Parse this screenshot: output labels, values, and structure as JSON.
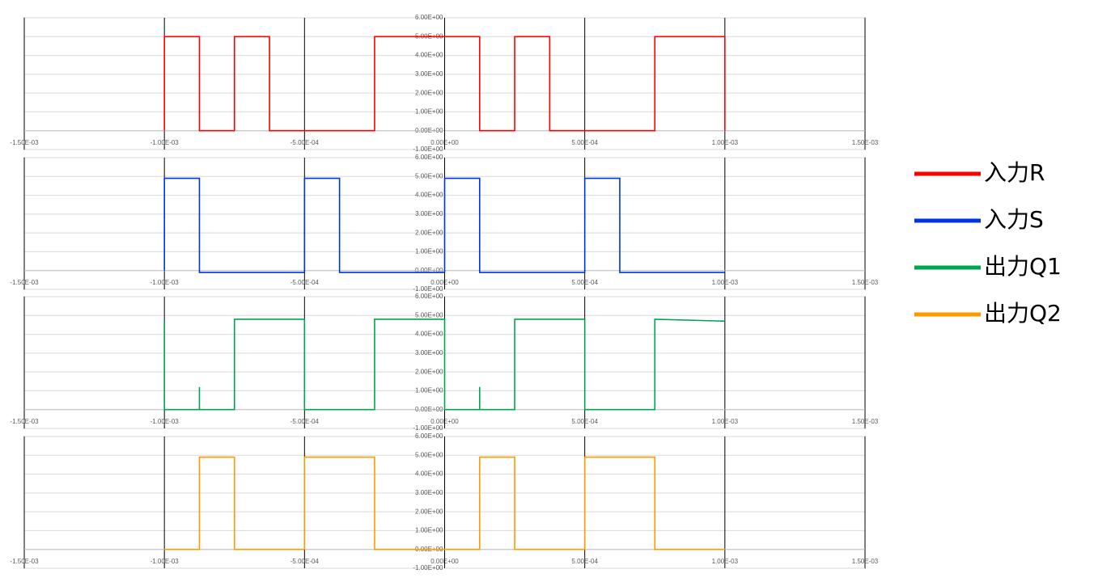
{
  "chart_data": [
    {
      "type": "line",
      "grid": true,
      "x": [
        -0.001,
        -0.001,
        -0.000875,
        -0.000875,
        -0.00075,
        -0.00075,
        -0.000625,
        -0.000625,
        -0.00025,
        -0.00025,
        0.000125,
        0.000125,
        0.00025,
        0.00025,
        0.000375,
        0.000375,
        0.00075,
        0.00075,
        0.001,
        0.001
      ],
      "series": [
        {
          "name": "入力R",
          "color": "#ff0000",
          "values": [
            0,
            5,
            5,
            0,
            0,
            5,
            5,
            0,
            0,
            5,
            5,
            0,
            0,
            5,
            5,
            0,
            0,
            5,
            5,
            0
          ]
        }
      ],
      "xlim": [
        -0.0015,
        0.0015
      ],
      "ylim": [
        -1,
        6
      ],
      "xticks": [
        {
          "value": -0.0015,
          "label": "-1.50E-03"
        },
        {
          "value": -0.001,
          "label": "-1.00E-03"
        },
        {
          "value": -0.0005,
          "label": "-5.00E-04"
        },
        {
          "value": 0,
          "label": "0.00E+00"
        },
        {
          "value": 0.0005,
          "label": "5.00E-04"
        },
        {
          "value": 0.001,
          "label": "1.00E-03"
        },
        {
          "value": 0.0015,
          "label": "1.50E-03"
        }
      ],
      "yticks": [
        {
          "value": -1,
          "label": "-1.00E+00"
        },
        {
          "value": 0,
          "label": "0.00E+00"
        },
        {
          "value": 1,
          "label": "1.00E+00"
        },
        {
          "value": 2,
          "label": "2.00E+00"
        },
        {
          "value": 3,
          "label": "3.00E+00"
        },
        {
          "value": 4,
          "label": "4.00E+00"
        },
        {
          "value": 5,
          "label": "5.00E+00"
        },
        {
          "value": 6,
          "label": "6.00E+00"
        }
      ]
    },
    {
      "type": "line",
      "grid": true,
      "x": [
        -0.001,
        -0.001,
        -0.000875,
        -0.000875,
        -0.0005,
        -0.0005,
        -0.000375,
        -0.000375,
        0,
        0,
        0.000125,
        0.000125,
        0.0005,
        0.0005,
        0.000625,
        0.000625,
        0.001
      ],
      "series": [
        {
          "name": "入力S",
          "color": "#0033e6",
          "values": [
            0,
            4.9,
            4.9,
            -0.1,
            -0.1,
            4.9,
            4.9,
            -0.1,
            -0.1,
            4.9,
            4.9,
            -0.1,
            -0.1,
            4.9,
            4.9,
            -0.1,
            -0.1
          ]
        }
      ],
      "xlim": [
        -0.0015,
        0.0015
      ],
      "ylim": [
        -1,
        6
      ],
      "xticks": [
        {
          "value": -0.0015,
          "label": "-1.50E-03"
        },
        {
          "value": -0.001,
          "label": "-1.00E-03"
        },
        {
          "value": -0.0005,
          "label": "-5.00E-04"
        },
        {
          "value": 0,
          "label": "0.00E+00"
        },
        {
          "value": 0.0005,
          "label": "5.00E-04"
        },
        {
          "value": 0.001,
          "label": "1.00E-03"
        },
        {
          "value": 0.0015,
          "label": "1.50E-03"
        }
      ],
      "yticks": [
        {
          "value": -1,
          "label": "-1.00E+00"
        },
        {
          "value": 0,
          "label": "0.00E+00"
        },
        {
          "value": 1,
          "label": "1.00E+00"
        },
        {
          "value": 2,
          "label": "2.00E+00"
        },
        {
          "value": 3,
          "label": "3.00E+00"
        },
        {
          "value": 4,
          "label": "4.00E+00"
        },
        {
          "value": 5,
          "label": "5.00E+00"
        },
        {
          "value": 6,
          "label": "6.00E+00"
        }
      ]
    },
    {
      "type": "line",
      "grid": true,
      "x": [
        -0.001,
        -0.001,
        -0.000875,
        -0.000875,
        -0.000875,
        -0.00075,
        -0.00075,
        -0.0005,
        -0.0005,
        -0.00025,
        -0.00025,
        0,
        0,
        0.000125,
        0.000125,
        0.000125,
        0.00025,
        0.00025,
        0.0005,
        0.0005,
        0.00075,
        0.00075,
        0.001
      ],
      "series": [
        {
          "name": "出力Q1",
          "color": "#00a550",
          "values": [
            4.7,
            0,
            0,
            1.2,
            0,
            0,
            4.8,
            4.8,
            0,
            0,
            4.8,
            4.8,
            0,
            0,
            1.2,
            0,
            0,
            4.8,
            4.8,
            0,
            0,
            4.8,
            4.7
          ]
        }
      ],
      "xlim": [
        -0.0015,
        0.0015
      ],
      "ylim": [
        -1,
        6
      ],
      "xticks": [
        {
          "value": -0.0015,
          "label": "-1.50E-03"
        },
        {
          "value": -0.001,
          "label": "-1.00E-03"
        },
        {
          "value": -0.0005,
          "label": "-5.00E-04"
        },
        {
          "value": 0,
          "label": "0.00E+00"
        },
        {
          "value": 0.0005,
          "label": "5.00E-04"
        },
        {
          "value": 0.001,
          "label": "1.00E-03"
        },
        {
          "value": 0.0015,
          "label": "1.50E-03"
        }
      ],
      "yticks": [
        {
          "value": -1,
          "label": "-1.00E+00"
        },
        {
          "value": 0,
          "label": "0.00E+00"
        },
        {
          "value": 1,
          "label": "1.00E+00"
        },
        {
          "value": 2,
          "label": "2.00E+00"
        },
        {
          "value": 3,
          "label": "3.00E+00"
        },
        {
          "value": 4,
          "label": "4.00E+00"
        },
        {
          "value": 5,
          "label": "5.00E+00"
        },
        {
          "value": 6,
          "label": "6.00E+00"
        }
      ]
    },
    {
      "type": "line",
      "grid": true,
      "x": [
        -0.001,
        -0.000875,
        -0.000875,
        -0.00075,
        -0.00075,
        -0.0005,
        -0.0005,
        -0.00025,
        -0.00025,
        0.000125,
        0.000125,
        0.00025,
        0.00025,
        0.0005,
        0.0005,
        0.00075,
        0.00075,
        0.001
      ],
      "series": [
        {
          "name": "出力Q2",
          "color": "#ff9900",
          "values": [
            0,
            0,
            4.9,
            4.9,
            0,
            0,
            4.9,
            4.9,
            0,
            0,
            4.9,
            4.9,
            0,
            0,
            4.9,
            4.9,
            0,
            0
          ]
        }
      ],
      "xlim": [
        -0.0015,
        0.0015
      ],
      "ylim": [
        -1,
        6
      ],
      "xticks": [
        {
          "value": -0.0015,
          "label": "-1.50E-03"
        },
        {
          "value": -0.001,
          "label": "-1.00E-03"
        },
        {
          "value": -0.0005,
          "label": "-5.00E-04"
        },
        {
          "value": 0,
          "label": "0.00E+00"
        },
        {
          "value": 0.0005,
          "label": "5.00E-04"
        },
        {
          "value": 0.001,
          "label": "1.00E-03"
        },
        {
          "value": 0.0015,
          "label": "1.50E-03"
        }
      ],
      "yticks": [
        {
          "value": -1,
          "label": "-1.00E+00"
        },
        {
          "value": 0,
          "label": "0.00E+00"
        },
        {
          "value": 1,
          "label": "1.00E+00"
        },
        {
          "value": 2,
          "label": "2.00E+00"
        },
        {
          "value": 3,
          "label": "3.00E+00"
        },
        {
          "value": 4,
          "label": "4.00E+00"
        },
        {
          "value": 5,
          "label": "5.00E+00"
        },
        {
          "value": 6,
          "label": "6.00E+00"
        }
      ]
    }
  ]
}
